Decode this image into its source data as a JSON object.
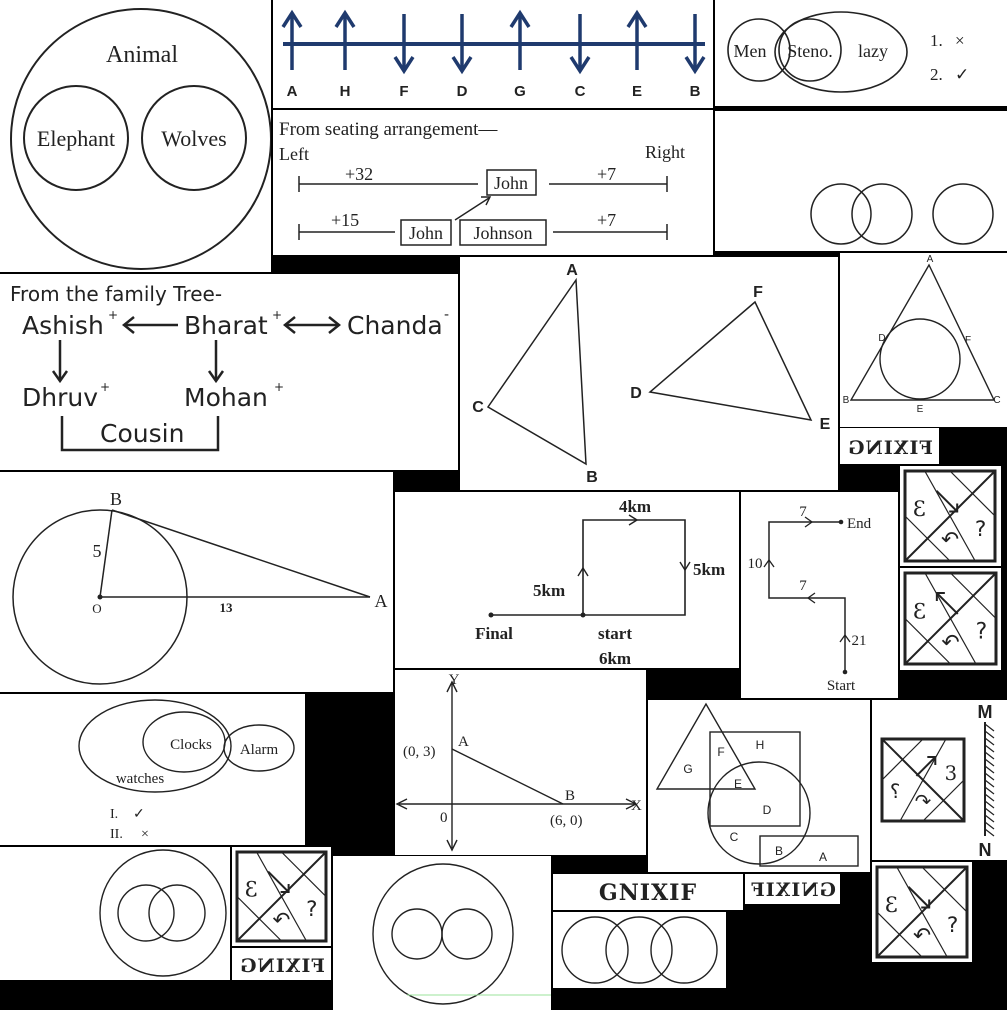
{
  "venn_animal": {
    "outer": "Animal",
    "left": "Elephant",
    "right": "Wolves"
  },
  "direction_line": {
    "letters": [
      "A",
      "H",
      "F",
      "D",
      "G",
      "C",
      "E",
      "B"
    ],
    "arrows": [
      "up",
      "up",
      "down",
      "down",
      "up",
      "down",
      "up",
      "down"
    ]
  },
  "venn_steno": {
    "a": "Men",
    "b": "Steno.",
    "c": "lazy",
    "c1_num": "1.",
    "c1_mark": "×",
    "c2_num": "2.",
    "c2_mark": "✓"
  },
  "seating": {
    "title": "From seating arrangement—",
    "left": "Left",
    "right": "Right",
    "row1_left": "+32",
    "row1_box": "John",
    "row1_right": "+7",
    "row2_left": "+15",
    "row2_box1": "John",
    "row2_box2": "Johnson",
    "row2_right": "+7"
  },
  "family": {
    "title": "From the family Tree-",
    "ashish": "Ashish",
    "ashish_sign": "+",
    "bharat": "Bharat",
    "bharat_sign": "+",
    "chanda": "Chanda",
    "chanda_sign": "-",
    "dhruv": "Dhruv",
    "dhruv_sign": "+",
    "mohan": "Mohan",
    "mohan_sign": "+",
    "cousin": "Cousin"
  },
  "triangles": {
    "a": "A",
    "b": "B",
    "c": "C",
    "d": "D",
    "e": "E",
    "f": "F"
  },
  "incircle": {
    "a": "A",
    "b": "B",
    "c": "C",
    "d": "D",
    "e": "E",
    "f": "F"
  },
  "mirror_words": {
    "m1": "FIXING",
    "m2": "GNIXIF",
    "m3": "GNIXIF",
    "m4": "FIXING"
  },
  "tangent": {
    "b": "B",
    "o": "O",
    "a": "A",
    "r": "5",
    "oa": "13"
  },
  "path_km": {
    "top": "4km",
    "right": "5km",
    "left": "5km",
    "final": "Final",
    "start": "start",
    "bottom": "6km"
  },
  "path_steps": {
    "end": "End",
    "start": "Start",
    "s7a": "7",
    "s10": "10",
    "s7b": "7",
    "s21": "21"
  },
  "venn_clock": {
    "watches": "watches",
    "clocks": "Clocks",
    "alarm": "Alarm",
    "c1_num": "I.",
    "c1_mark": "✓",
    "c2_num": "II.",
    "c2_mark": "×"
  },
  "coord": {
    "y": "Y",
    "x": "X",
    "a": "A",
    "b": "B",
    "a_pt": "(0, 3)",
    "b_pt": "(6, 0)",
    "origin": "0"
  },
  "shapes": {
    "g": "G",
    "f": "F",
    "h": "H",
    "e": "E",
    "d": "D",
    "c": "C",
    "b": "B",
    "a": "A"
  },
  "mirror_panel": {
    "m": "M",
    "n": "N"
  },
  "figure_glyphs": {
    "three": "3",
    "q": "?",
    "arc": "↶"
  }
}
